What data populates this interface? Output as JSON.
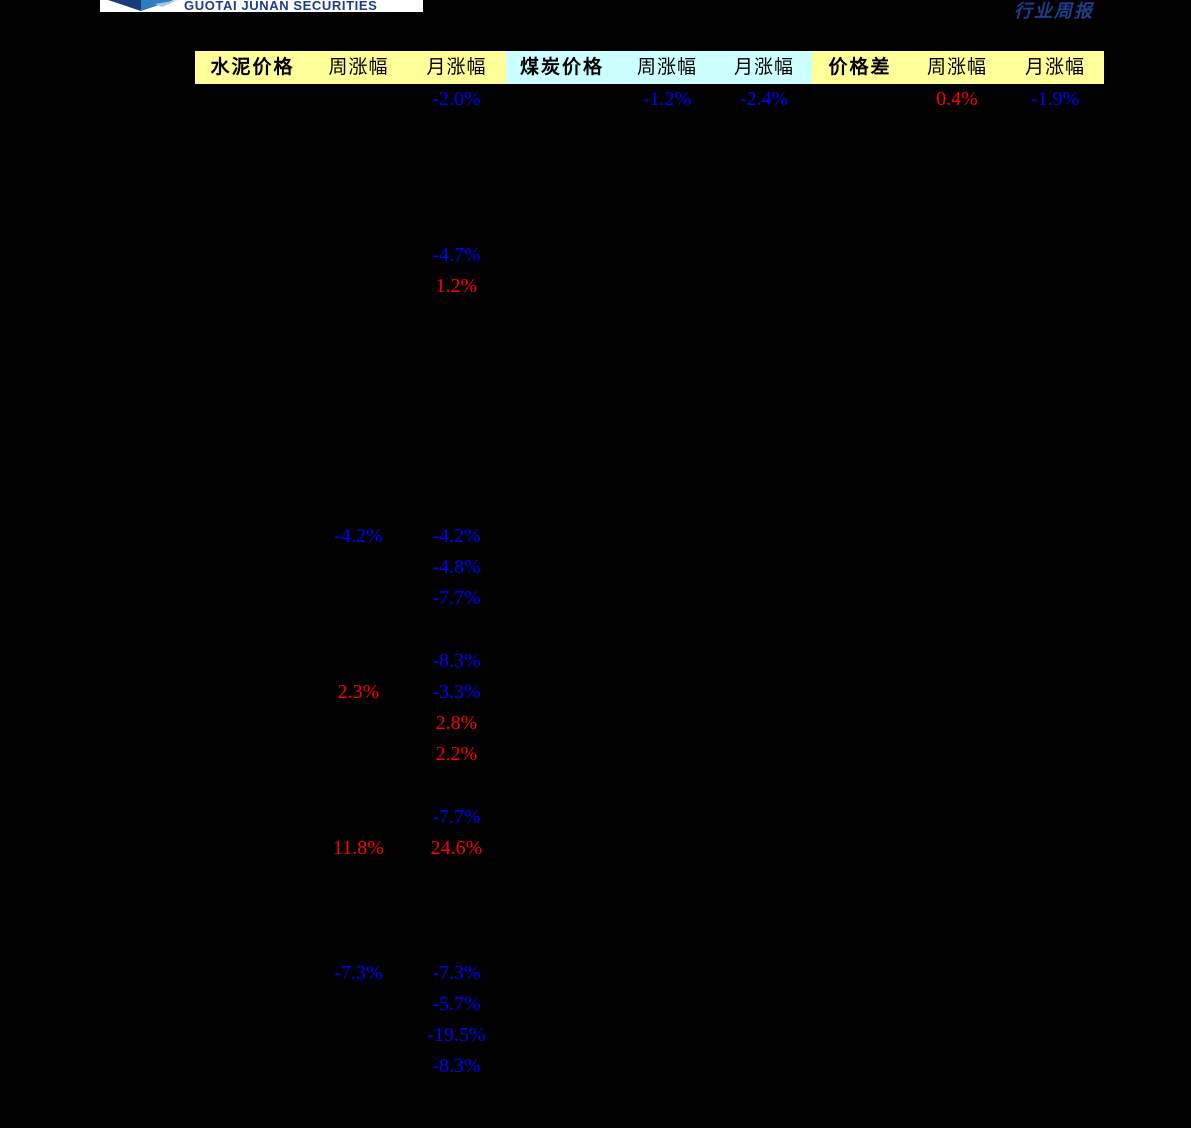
{
  "branding": {
    "logo_text": "GUOTAI JUNAN SECURITIES",
    "report_type": "行业周报"
  },
  "colors": {
    "positive": "#ff0000",
    "negative": "#0000ff",
    "group_cement": "#ffff99",
    "group_coal": "#ccffff",
    "group_spread": "#ffff99",
    "logo_navy": "#1f3c8c"
  },
  "table": {
    "columns": [
      {
        "label": "水泥价格",
        "bold": true,
        "group": "cement"
      },
      {
        "label": "周涨幅",
        "bold": false,
        "group": "cement"
      },
      {
        "label": "月涨幅",
        "bold": false,
        "group": "cement"
      },
      {
        "label": "煤炭价格",
        "bold": true,
        "group": "coal"
      },
      {
        "label": "周涨幅",
        "bold": false,
        "group": "coal"
      },
      {
        "label": "月涨幅",
        "bold": false,
        "group": "coal"
      },
      {
        "label": "价格差",
        "bold": true,
        "group": "spread"
      },
      {
        "label": "周涨幅",
        "bold": false,
        "group": "spread"
      },
      {
        "label": "月涨幅",
        "bold": false,
        "group": "spread"
      }
    ],
    "row_count": 32,
    "cells": [
      {
        "row": 1,
        "col": 3,
        "value": "-2.0%",
        "sign": "negative"
      },
      {
        "row": 1,
        "col": 5,
        "value": "-1.2%",
        "sign": "negative"
      },
      {
        "row": 1,
        "col": 6,
        "value": "-2.4%",
        "sign": "negative"
      },
      {
        "row": 1,
        "col": 8,
        "value": "0.4%",
        "sign": "positive"
      },
      {
        "row": 1,
        "col": 9,
        "value": "-1.9%",
        "sign": "negative"
      },
      {
        "row": 6,
        "col": 3,
        "value": "-4.7%",
        "sign": "negative"
      },
      {
        "row": 7,
        "col": 3,
        "value": "1.2%",
        "sign": "positive"
      },
      {
        "row": 15,
        "col": 2,
        "value": "-4.2%",
        "sign": "negative"
      },
      {
        "row": 15,
        "col": 3,
        "value": "-4.2%",
        "sign": "negative"
      },
      {
        "row": 16,
        "col": 3,
        "value": "-4.8%",
        "sign": "negative"
      },
      {
        "row": 17,
        "col": 3,
        "value": "-7.7%",
        "sign": "negative"
      },
      {
        "row": 19,
        "col": 3,
        "value": "-8.3%",
        "sign": "negative"
      },
      {
        "row": 20,
        "col": 2,
        "value": "2.3%",
        "sign": "positive"
      },
      {
        "row": 20,
        "col": 3,
        "value": "-3.3%",
        "sign": "negative"
      },
      {
        "row": 21,
        "col": 3,
        "value": "2.8%",
        "sign": "positive"
      },
      {
        "row": 22,
        "col": 3,
        "value": "2.2%",
        "sign": "positive"
      },
      {
        "row": 24,
        "col": 3,
        "value": "-7.7%",
        "sign": "negative"
      },
      {
        "row": 25,
        "col": 2,
        "value": "11.8%",
        "sign": "positive"
      },
      {
        "row": 25,
        "col": 3,
        "value": "24.6%",
        "sign": "positive"
      },
      {
        "row": 29,
        "col": 2,
        "value": "-7.3%",
        "sign": "negative"
      },
      {
        "row": 29,
        "col": 3,
        "value": "-7.3%",
        "sign": "negative"
      },
      {
        "row": 30,
        "col": 3,
        "value": "-5.7%",
        "sign": "negative"
      },
      {
        "row": 31,
        "col": 3,
        "value": "-19.5%",
        "sign": "negative"
      },
      {
        "row": 32,
        "col": 3,
        "value": "-8.3%",
        "sign": "negative"
      }
    ]
  }
}
